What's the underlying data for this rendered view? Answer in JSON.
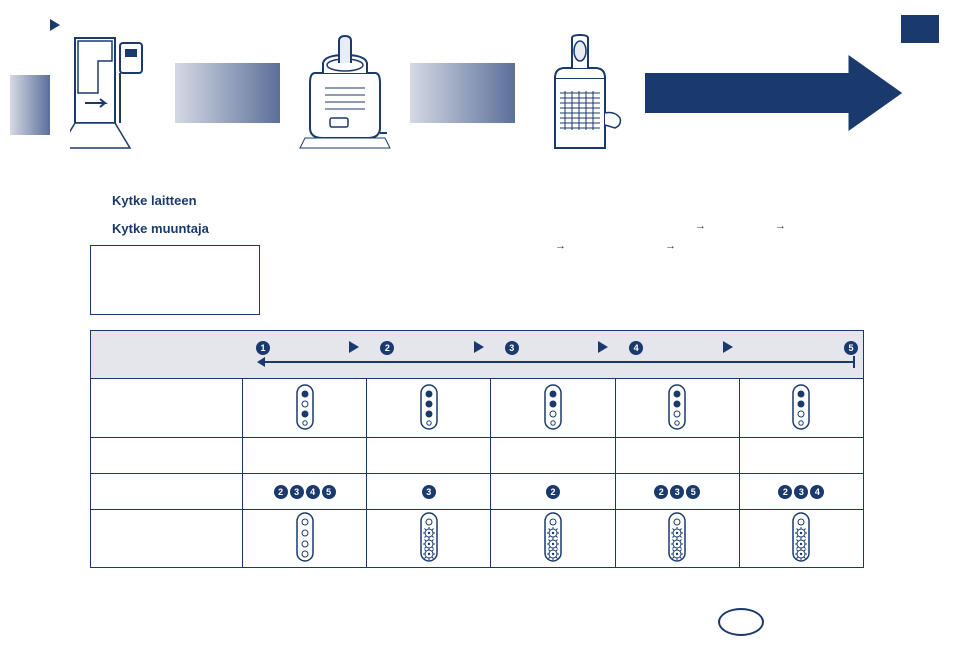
{
  "colors": {
    "primary": "#1a3a6e",
    "header_bg": "#e5e5ec",
    "grad_start": "#d5d9e3",
    "grad_end": "#5b6f9a",
    "white": "#ffffff"
  },
  "headings": {
    "h1": "Kytke laitteen",
    "h2": "Kytke muuntaja"
  },
  "arrow_sequence": [
    "→",
    "→",
    "→",
    "→"
  ],
  "table": {
    "header_numbers": [
      "1",
      "2",
      "3",
      "4",
      "5"
    ],
    "rows": [
      {
        "type": "icons-pill",
        "label": "",
        "cells": [
          {
            "dots": [
              1,
              0,
              1,
              0
            ]
          },
          {
            "dots": [
              1,
              1,
              1,
              0
            ]
          },
          {
            "dots": [
              1,
              1,
              0,
              0
            ]
          },
          {
            "dots": [
              1,
              1,
              0,
              0
            ]
          },
          {
            "dots": [
              1,
              1,
              0,
              0
            ]
          }
        ]
      },
      {
        "type": "blank",
        "label": "",
        "cells": [
          "",
          "",
          "",
          "",
          ""
        ]
      },
      {
        "type": "numbers",
        "label": "",
        "cells": [
          [
            "2",
            "3",
            "4",
            "5"
          ],
          [
            "3"
          ],
          [
            "2"
          ],
          [
            "2",
            "3",
            "5"
          ],
          [
            "2",
            "3",
            "4"
          ]
        ]
      },
      {
        "type": "icons-fan",
        "label": "",
        "cells": [
          {
            "fan": [
              0,
              0,
              0,
              0
            ]
          },
          {
            "fan": [
              0,
              1,
              1,
              1
            ]
          },
          {
            "fan": [
              0,
              1,
              1,
              1
            ]
          },
          {
            "fan": [
              0,
              1,
              1,
              1
            ]
          },
          {
            "fan": [
              0,
              1,
              1,
              1
            ]
          }
        ]
      }
    ]
  }
}
